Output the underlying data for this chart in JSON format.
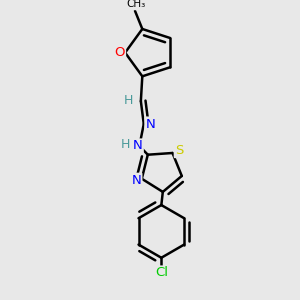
{
  "bg_color": "#e8e8e8",
  "bond_color": "#000000",
  "atom_colors": {
    "O": "#ff0000",
    "N": "#0000ff",
    "S": "#cccc00",
    "Cl": "#00cc00",
    "C": "#000000",
    "H": "#4a9a9a"
  },
  "bond_width": 1.8,
  "figsize": [
    3.0,
    3.0
  ],
  "dpi": 100
}
